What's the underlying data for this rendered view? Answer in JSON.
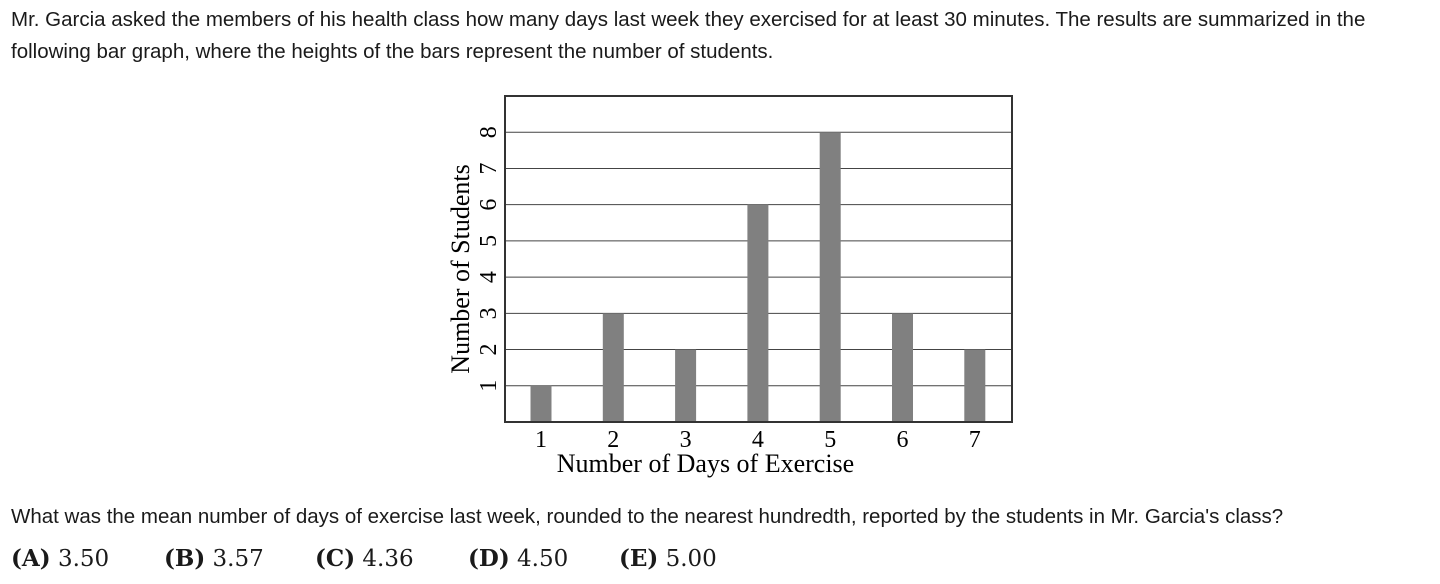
{
  "problem": {
    "intro": "Mr. Garcia asked the members of his health class how many days last week they exercised for at least 30 minutes. The results are summarized in the following bar graph, where the heights of the bars represent the number of students.",
    "question": "What was the mean number of days of exercise last week, rounded to the nearest hundredth, reported by the students in Mr. Garcia's class?",
    "choices": [
      {
        "letter": "(A)",
        "value": "3.50"
      },
      {
        "letter": "(B)",
        "value": "3.57"
      },
      {
        "letter": "(C)",
        "value": "4.36"
      },
      {
        "letter": "(D)",
        "value": "4.50"
      },
      {
        "letter": "(E)",
        "value": "5.00"
      }
    ]
  },
  "chart_data": {
    "type": "bar",
    "title": "",
    "xlabel": "Number of Days of Exercise",
    "ylabel": "Number of Students",
    "categories": [
      "1",
      "2",
      "3",
      "4",
      "5",
      "6",
      "7"
    ],
    "values": [
      1,
      3,
      2,
      6,
      8,
      3,
      2
    ],
    "yticks": [
      1,
      2,
      3,
      4,
      5,
      6,
      7,
      8
    ],
    "ylim": [
      0,
      9
    ],
    "grid": "horizontal",
    "bar_color": "#808080"
  }
}
